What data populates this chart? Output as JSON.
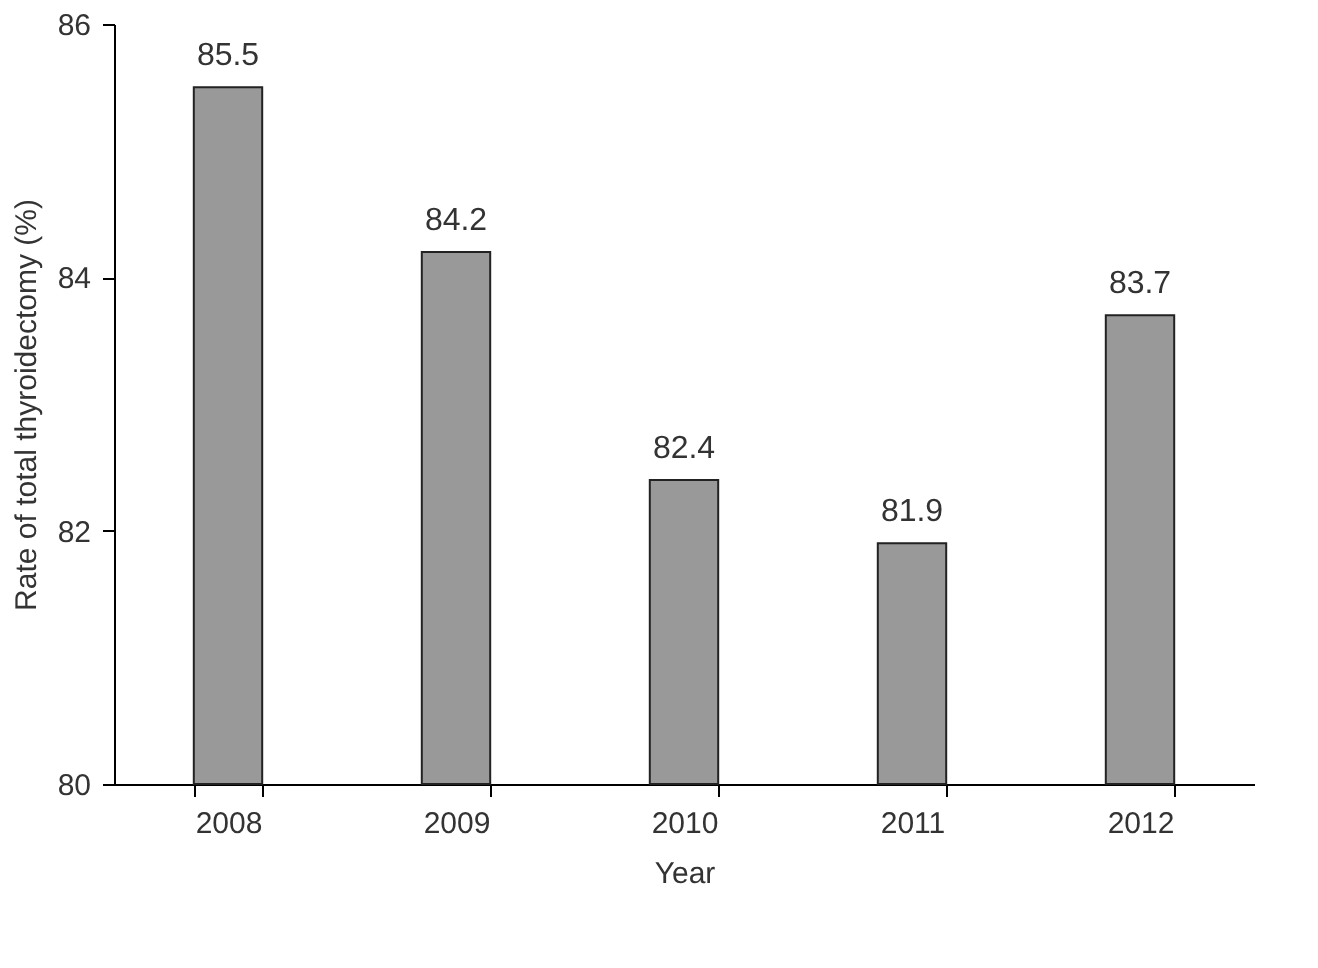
{
  "chart_data": {
    "type": "bar",
    "xlabel": "Year",
    "ylabel": "Rate of total thyroidectomy (%)",
    "categories": [
      "2008",
      "2009",
      "2010",
      "2011",
      "2012"
    ],
    "values": [
      85.5,
      84.2,
      82.4,
      81.9,
      83.7
    ],
    "color": "#999999",
    "ylim": [
      80,
      86
    ],
    "yticks": [
      80,
      82,
      84,
      86
    ],
    "grid": false,
    "data_labels": true
  }
}
